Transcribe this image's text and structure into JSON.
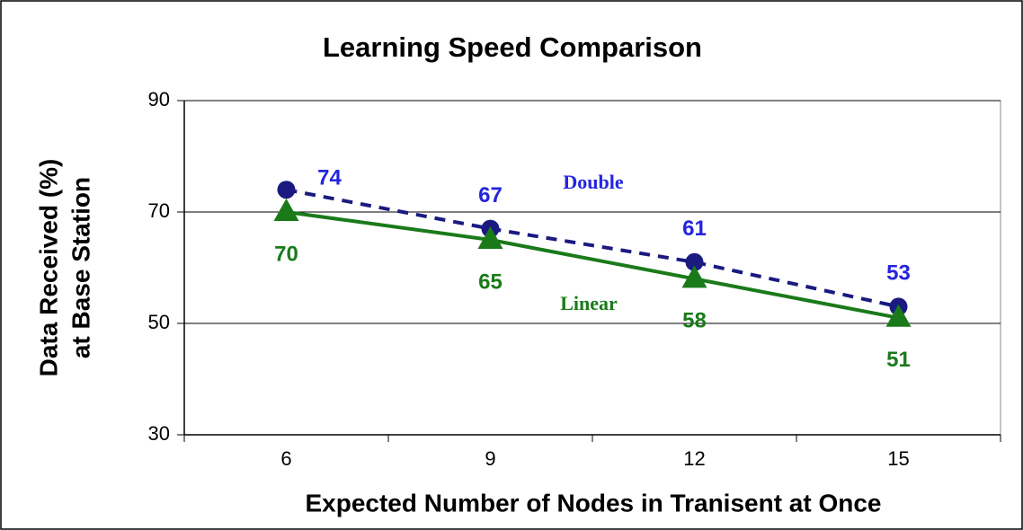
{
  "chart_data": {
    "type": "line",
    "title": "Learning Speed Comparison",
    "x_label": "Expected Number of Nodes in Tranisent at Once",
    "y_label": [
      "Data Received (%)",
      "at Base Station"
    ],
    "categories": [
      "6",
      "9",
      "12",
      "15"
    ],
    "series": [
      {
        "name": "Double",
        "color": "#1a1a80",
        "label_color": "#2424e0",
        "marker": "circle",
        "dash": true,
        "values": [
          74,
          67,
          61,
          53
        ]
      },
      {
        "name": "Linear",
        "color": "#1a7a1a",
        "label_color": "#1a7a1a",
        "marker": "triangle",
        "dash": false,
        "values": [
          70,
          65,
          58,
          51
        ]
      }
    ],
    "ylim": [
      30,
      90
    ],
    "yticks": [
      30,
      50,
      70,
      90
    ],
    "grid": true
  }
}
